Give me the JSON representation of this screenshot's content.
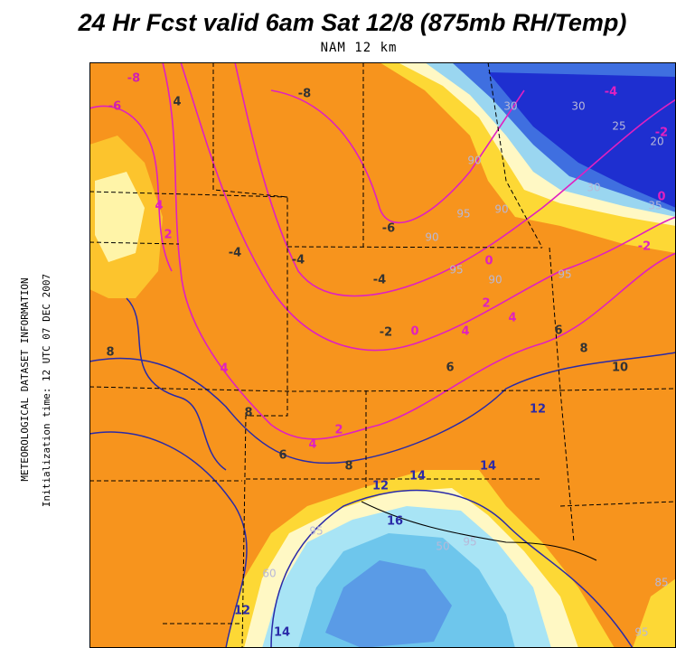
{
  "header": {
    "title": "24 Hr Fcst valid 6am Sat 12/8 (875mb RH/Temp)",
    "subtitle": "NAM 12 km"
  },
  "side_text": {
    "line1": "METEOROLOGICAL DATASET INFORMATION",
    "line2": "Initialization time: 12 UTC 07 DEC 2007"
  },
  "map": {
    "temperature_labels": [
      "-8",
      "-6",
      "-8",
      "-6",
      "-4",
      "-4",
      "-2",
      "0",
      "0",
      "2",
      "4",
      "4",
      "6",
      "6",
      "8",
      "10",
      "12",
      "-2",
      "0",
      "2",
      "4",
      "6",
      "8",
      "12",
      "14",
      "14",
      "16",
      "12",
      "14",
      "8",
      "4",
      "8",
      "4",
      "2",
      "4",
      "-4",
      "-2",
      "-4"
    ],
    "rh_labels": [
      "30",
      "25",
      "20",
      "30",
      "35",
      "30",
      "90",
      "90",
      "95",
      "90",
      "95",
      "90",
      "95",
      "95",
      "50",
      "60",
      "95",
      "85",
      "95"
    ]
  }
}
